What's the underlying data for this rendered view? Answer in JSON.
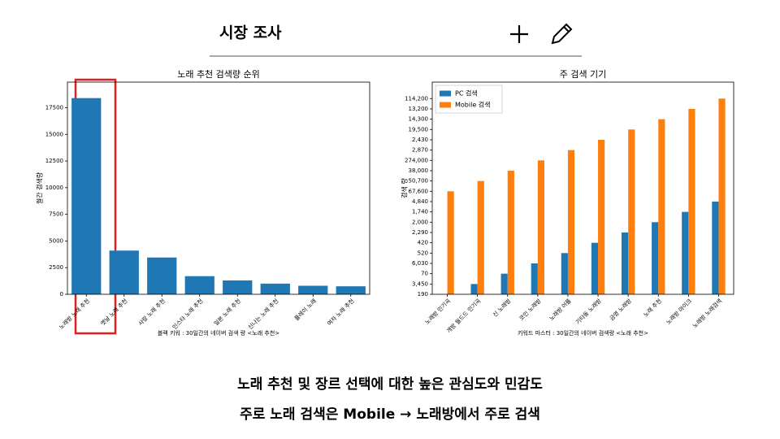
{
  "header": {
    "title": "시장  조사"
  },
  "footer": {
    "lines": [
      "노래  추천  및  장르  선택에  대한  높은  관심도와  민감도",
      "주로  노래  검색은 Mobile → 노래방에서  주로  검색"
    ]
  },
  "chart_data": [
    {
      "type": "bar",
      "title": "노래 추천 검색량 순위",
      "ylabel": "월간 검색량",
      "xlabel": "블랙 키워 : 30일간의 네이버 검색 량 <노래 추천>",
      "categories": [
        "노래방 노래 추천",
        "옛날 노래 추천",
        "사랑 노래 추천",
        "인스타 노래 추천",
        "일본 노래 추천",
        "신나는 노래 추천",
        "플레이 노래",
        "여자 노래 추천"
      ],
      "values": [
        18400,
        4100,
        3450,
        1700,
        1300,
        1000,
        800,
        750
      ],
      "color": "#1f77b4",
      "ylim": [
        0,
        19900
      ],
      "yticks": [
        0,
        2500,
        5000,
        7500,
        10000,
        12500,
        15000,
        17500
      ]
    },
    {
      "type": "grouped_bar",
      "title": "주 검색 기기",
      "ylabel": "검색 량",
      "xlabel": "키워드 마스터 : 30일간의 네이버 검색량 <노래 추천>",
      "categories": [
        "노래방 인기곡",
        "개방 월드드 인기곡",
        "신 노래방",
        "코인 노래방",
        "노래방 어플",
        "기타동 노래방",
        "금영 노래방",
        "노래 추천",
        "노래방 마이크",
        "노래방 노래검색"
      ],
      "series": [
        {
          "name": "PC 검색",
          "color": "#1f77b4",
          "values": [
            0,
            1,
            2,
            3,
            4,
            5,
            6,
            7,
            8,
            9
          ]
        },
        {
          "name": "Mobile 검색",
          "color": "#ff7f0e",
          "values": [
            10,
            11,
            12,
            13,
            14,
            15,
            16,
            17,
            18,
            19
          ]
        }
      ],
      "legend": "upper left",
      "ylim": [
        0,
        20.6
      ],
      "yticks": [
        {
          "value": 0,
          "label": "190"
        },
        {
          "value": 1,
          "label": "3,450"
        },
        {
          "value": 2,
          "label": "70"
        },
        {
          "value": 3,
          "label": "6,030"
        },
        {
          "value": 4,
          "label": "520"
        },
        {
          "value": 5,
          "label": "420"
        },
        {
          "value": 6,
          "label": "2,290"
        },
        {
          "value": 7,
          "label": "2,000"
        },
        {
          "value": 8,
          "label": "1,740"
        },
        {
          "value": 9,
          "label": "4,840"
        },
        {
          "value": 10,
          "label": "67,600"
        },
        {
          "value": 11,
          "label": "50,700"
        },
        {
          "value": 12,
          "label": "38,000"
        },
        {
          "value": 13,
          "label": "274,000"
        },
        {
          "value": 14,
          "label": "2,870"
        },
        {
          "value": 15,
          "label": "2,430"
        },
        {
          "value": 16,
          "label": "19,500"
        },
        {
          "value": 17,
          "label": "14,300"
        },
        {
          "value": 18,
          "label": "13,200"
        },
        {
          "value": 19,
          "label": "114,200"
        }
      ]
    }
  ]
}
